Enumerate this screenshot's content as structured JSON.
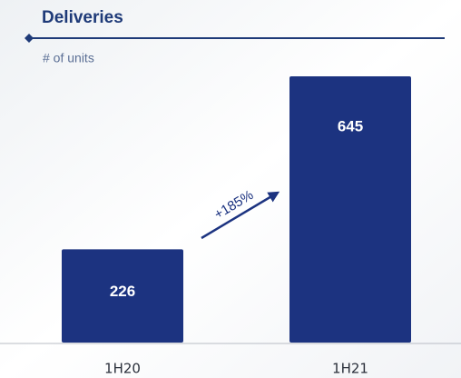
{
  "chart_data": {
    "type": "bar",
    "title": "Deliveries",
    "subtitle": "# of units",
    "categories": [
      "1H20",
      "1H21"
    ],
    "values": [
      226,
      645
    ],
    "color": "#1c3380",
    "annotation": "+185%"
  }
}
